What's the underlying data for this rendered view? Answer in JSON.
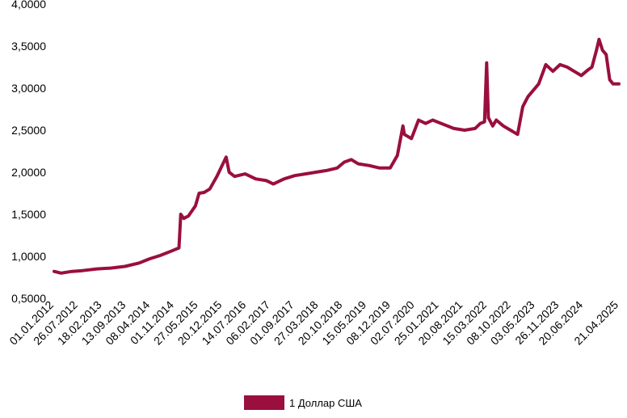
{
  "chart_data": {
    "type": "line",
    "ylim": [
      0.5,
      4.0
    ],
    "yticks": [
      "0,5000",
      "1,0000",
      "1,5000",
      "2,0000",
      "2,5000",
      "3,0000",
      "3,5000",
      "4,0000"
    ],
    "yticks_values": [
      0.5,
      1.0,
      1.5,
      2.0,
      2.5,
      3.0,
      3.5,
      4.0
    ],
    "xticks": [
      "01.01.2012",
      "26.07.2012",
      "18.02.2013",
      "13.09.2013",
      "08.04.2014",
      "01.11.2014",
      "27.05.2015",
      "20.12.2015",
      "14.07.2016",
      "06.02.2017",
      "01.09.2017",
      "27.03.2018",
      "20.10.2018",
      "15.05.2019",
      "08.12.2019",
      "02.07.2020",
      "25.01.2021",
      "20.08.2021",
      "15.03.2022",
      "08.10.2022",
      "03.05.2023",
      "26.11.2023",
      "20.06.2024",
      "21.04.2025"
    ],
    "xticks_dates": [
      "2012-01-01",
      "2012-07-26",
      "2013-02-18",
      "2013-09-13",
      "2014-04-08",
      "2014-11-01",
      "2015-05-27",
      "2015-12-20",
      "2016-07-14",
      "2017-02-06",
      "2017-09-01",
      "2018-03-27",
      "2018-10-20",
      "2019-05-15",
      "2019-12-08",
      "2020-07-02",
      "2021-01-25",
      "2021-08-20",
      "2022-03-15",
      "2022-10-08",
      "2023-05-03",
      "2023-11-26",
      "2024-06-20",
      "2025-04-21"
    ],
    "grid": false,
    "legend_position": "bottom-center",
    "series": [
      {
        "name": "1 Доллар США",
        "color": "#9a0f3e",
        "x": [
          "2012-01-01",
          "2012-03-01",
          "2012-06-01",
          "2012-09-01",
          "2013-01-01",
          "2013-05-01",
          "2013-09-01",
          "2014-01-01",
          "2014-04-01",
          "2014-07-01",
          "2014-10-01",
          "2014-12-10",
          "2014-12-25",
          "2015-01-20",
          "2015-03-01",
          "2015-05-01",
          "2015-06-01",
          "2015-07-15",
          "2015-09-01",
          "2015-11-01",
          "2016-01-20",
          "2016-02-15",
          "2016-04-01",
          "2016-07-01",
          "2016-10-01",
          "2017-01-01",
          "2017-03-01",
          "2017-06-01",
          "2017-09-01",
          "2017-12-01",
          "2018-03-01",
          "2018-06-01",
          "2018-09-01",
          "2018-11-01",
          "2019-01-01",
          "2019-03-01",
          "2019-06-01",
          "2019-09-01",
          "2019-12-01",
          "2020-02-01",
          "2020-03-20",
          "2020-04-01",
          "2020-06-01",
          "2020-08-01",
          "2020-10-01",
          "2020-12-01",
          "2021-03-01",
          "2021-06-01",
          "2021-09-01",
          "2021-12-01",
          "2022-01-15",
          "2022-02-20",
          "2022-03-10",
          "2022-03-25",
          "2022-05-01",
          "2022-06-01",
          "2022-08-01",
          "2022-10-01",
          "2022-12-01",
          "2023-01-15",
          "2023-03-01",
          "2023-06-01",
          "2023-08-01",
          "2023-10-01",
          "2023-12-01",
          "2024-02-01",
          "2024-04-01",
          "2024-06-01",
          "2024-08-01",
          "2024-09-01",
          "2024-10-10",
          "2024-11-01",
          "2024-12-01",
          "2025-01-01",
          "2025-02-01",
          "2025-03-01",
          "2025-04-21"
        ],
        "values": [
          0.82,
          0.8,
          0.82,
          0.83,
          0.85,
          0.86,
          0.88,
          0.92,
          0.97,
          1.01,
          1.06,
          1.1,
          1.5,
          1.45,
          1.48,
          1.6,
          1.75,
          1.76,
          1.8,
          1.95,
          2.18,
          2.0,
          1.95,
          1.98,
          1.92,
          1.9,
          1.86,
          1.92,
          1.96,
          1.98,
          2.0,
          2.02,
          2.05,
          2.12,
          2.15,
          2.1,
          2.08,
          2.05,
          2.05,
          2.2,
          2.55,
          2.45,
          2.4,
          2.62,
          2.58,
          2.62,
          2.57,
          2.52,
          2.5,
          2.52,
          2.58,
          2.6,
          3.3,
          2.65,
          2.55,
          2.62,
          2.55,
          2.5,
          2.45,
          2.78,
          2.9,
          3.05,
          3.28,
          3.2,
          3.28,
          3.25,
          3.2,
          3.15,
          3.22,
          3.25,
          3.45,
          3.58,
          3.45,
          3.4,
          3.1,
          3.05,
          3.05
        ]
      }
    ]
  }
}
